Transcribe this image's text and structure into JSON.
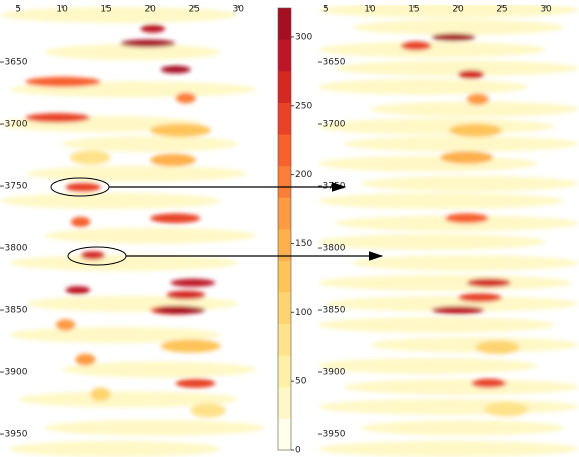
{
  "chart_data": [
    {
      "type": "heatmap",
      "xlim": [
        2.95,
        34.4
      ],
      "ylim": [
        3604,
        3968.5
      ],
      "xticks": [
        5,
        10,
        15,
        20,
        25,
        30
      ],
      "yticks": [
        3650,
        3700,
        3750,
        3800,
        3850,
        3900,
        3950
      ],
      "x0": [
        3,
        8,
        4,
        3,
        10,
        6,
        3,
        8,
        4,
        6,
        4,
        10,
        5,
        8,
        4,
        10.9,
        20,
        20,
        21.2,
        13.2,
        24.6,
        11.5,
        9.3,
        22.9,
        20,
        11,
        22.9,
        5.8,
        10.4,
        5.8,
        12.1,
        22.3,
        21.8,
        10.4,
        20,
        22.9,
        16.6,
        18.9,
        21.2,
        20.6
      ],
      "x1": [
        30,
        28,
        32,
        26,
        30,
        31,
        28,
        32,
        30,
        30,
        28,
        32,
        30,
        33,
        28,
        15.5,
        26.9,
        25.2,
        28,
        15.5,
        28.6,
        13.8,
        11.5,
        25.2,
        25.7,
        13.2,
        27.4,
        14.4,
        14.4,
        13.2,
        14.9,
        27.4,
        26.3,
        13.2,
        25.7,
        27.4,
        22.9,
        21.7,
        24.6,
        26.3
      ],
      "y": [
        3612,
        3642,
        3672,
        3700,
        3716,
        3740,
        3762,
        3790,
        3812,
        3845,
        3870,
        3898,
        3922,
        3945,
        3962,
        3727,
        3705,
        3729,
        3879,
        3918,
        3931,
        3890,
        3862,
        3679,
        3776,
        3779,
        3909,
        3666,
        3751,
        3695,
        3806,
        3828,
        3838,
        3834,
        3850,
        3909,
        3635,
        3623,
        3656,
        3850
      ],
      "values": [
        30,
        25,
        30,
        25,
        35,
        30,
        25,
        30,
        25,
        30,
        25,
        30,
        25,
        30,
        25,
        90,
        120,
        140,
        120,
        100,
        90,
        170,
        180,
        200,
        230,
        220,
        260,
        220,
        240,
        240,
        270,
        290,
        260,
        280,
        250,
        250,
        300,
        280,
        300,
        300
      ]
    },
    {
      "type": "heatmap",
      "xlim": [
        4.1,
        33.75
      ],
      "ylim": [
        3604,
        3968.5
      ],
      "xticks": [
        5,
        10,
        15,
        20,
        25,
        30
      ],
      "yticks": [
        3650,
        3700,
        3750,
        3800,
        3850,
        3900,
        3950
      ],
      "x0": [
        4.1,
        8,
        4.1,
        6,
        4.1,
        10,
        4.1,
        7,
        4.1,
        9,
        4.1,
        6,
        4.1,
        8,
        4.1,
        5,
        4.1,
        10,
        4.1,
        7,
        4.1,
        9,
        4.1,
        19,
        18,
        22,
        23,
        21,
        13.5,
        18.5,
        20,
        21,
        21.5,
        17,
        20,
        17
      ],
      "x1": [
        33.75,
        32,
        30,
        33.75,
        28,
        33.75,
        31,
        33.75,
        29,
        33.75,
        32,
        33.75,
        30,
        33.75,
        33,
        33.75,
        31,
        33.75,
        29,
        33.75,
        33.75,
        32,
        33.75,
        25,
        24,
        27,
        28,
        23.5,
        17,
        23.5,
        23,
        26,
        25.5,
        23,
        25,
        22
      ],
      "y": [
        3608,
        3622,
        3640,
        3655,
        3670,
        3688,
        3702,
        3716,
        3732,
        3748,
        3762,
        3780,
        3795,
        3812,
        3828,
        3845,
        3862,
        3878,
        3895,
        3912,
        3928,
        3945,
        3962,
        3705,
        3727,
        3880,
        3930,
        3680,
        3637,
        3776,
        3660,
        3828,
        3909,
        3850,
        3840,
        3630
      ],
      "values": [
        35,
        45,
        30,
        40,
        35,
        45,
        30,
        40,
        35,
        45,
        30,
        40,
        35,
        45,
        30,
        40,
        35,
        45,
        30,
        40,
        35,
        45,
        30,
        120,
        140,
        110,
        90,
        180,
        250,
        220,
        260,
        260,
        250,
        290,
        250,
        300
      ]
    }
  ],
  "colorbar": {
    "clim": [
      0,
      321
    ],
    "ticks": [
      0,
      50,
      100,
      150,
      200,
      250,
      300
    ],
    "colors": [
      "#ffffec",
      "#fff8c6",
      "#fff0a8",
      "#ffe28a",
      "#fed470",
      "#fec45a",
      "#fdb04c",
      "#fd9a42",
      "#fc7e38",
      "#f6612e",
      "#e84326",
      "#d42820",
      "#bd1626",
      "#a50f22"
    ]
  }
}
